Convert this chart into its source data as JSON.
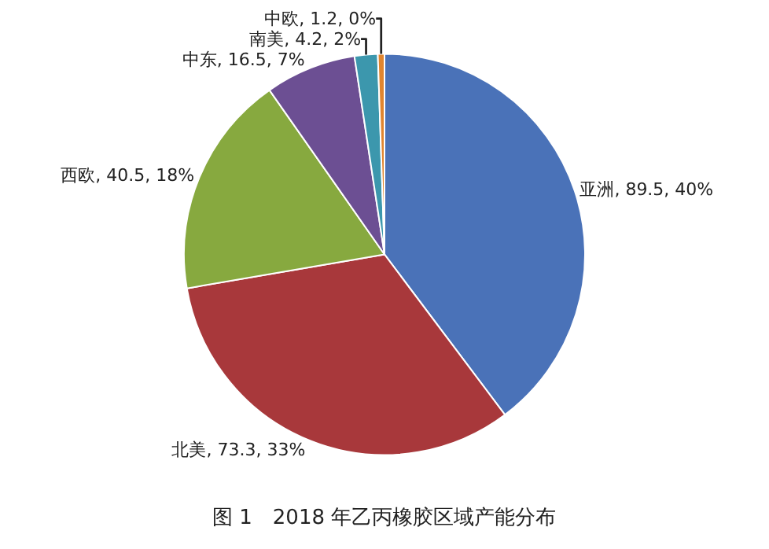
{
  "chart_data": {
    "type": "pie",
    "categories": [
      "亚洲",
      "北美",
      "西欧",
      "中东",
      "南美",
      "中欧"
    ],
    "values": [
      89.5,
      73.3,
      40.5,
      16.5,
      4.2,
      1.2
    ],
    "colors": [
      "#4a72b8",
      "#a8383b",
      "#87a93f",
      "#6c4f93",
      "#3c97ad",
      "#e0852f"
    ],
    "value_labels": [
      "89.5, 40%",
      "73.3, 33%",
      "40.5, 18%",
      "16.5, 7%",
      "4.2, 2%",
      "1.2, 0%"
    ],
    "annotations": [
      "图 1　2018 年乙丙橡胶区域产能分布"
    ],
    "legend": false
  }
}
